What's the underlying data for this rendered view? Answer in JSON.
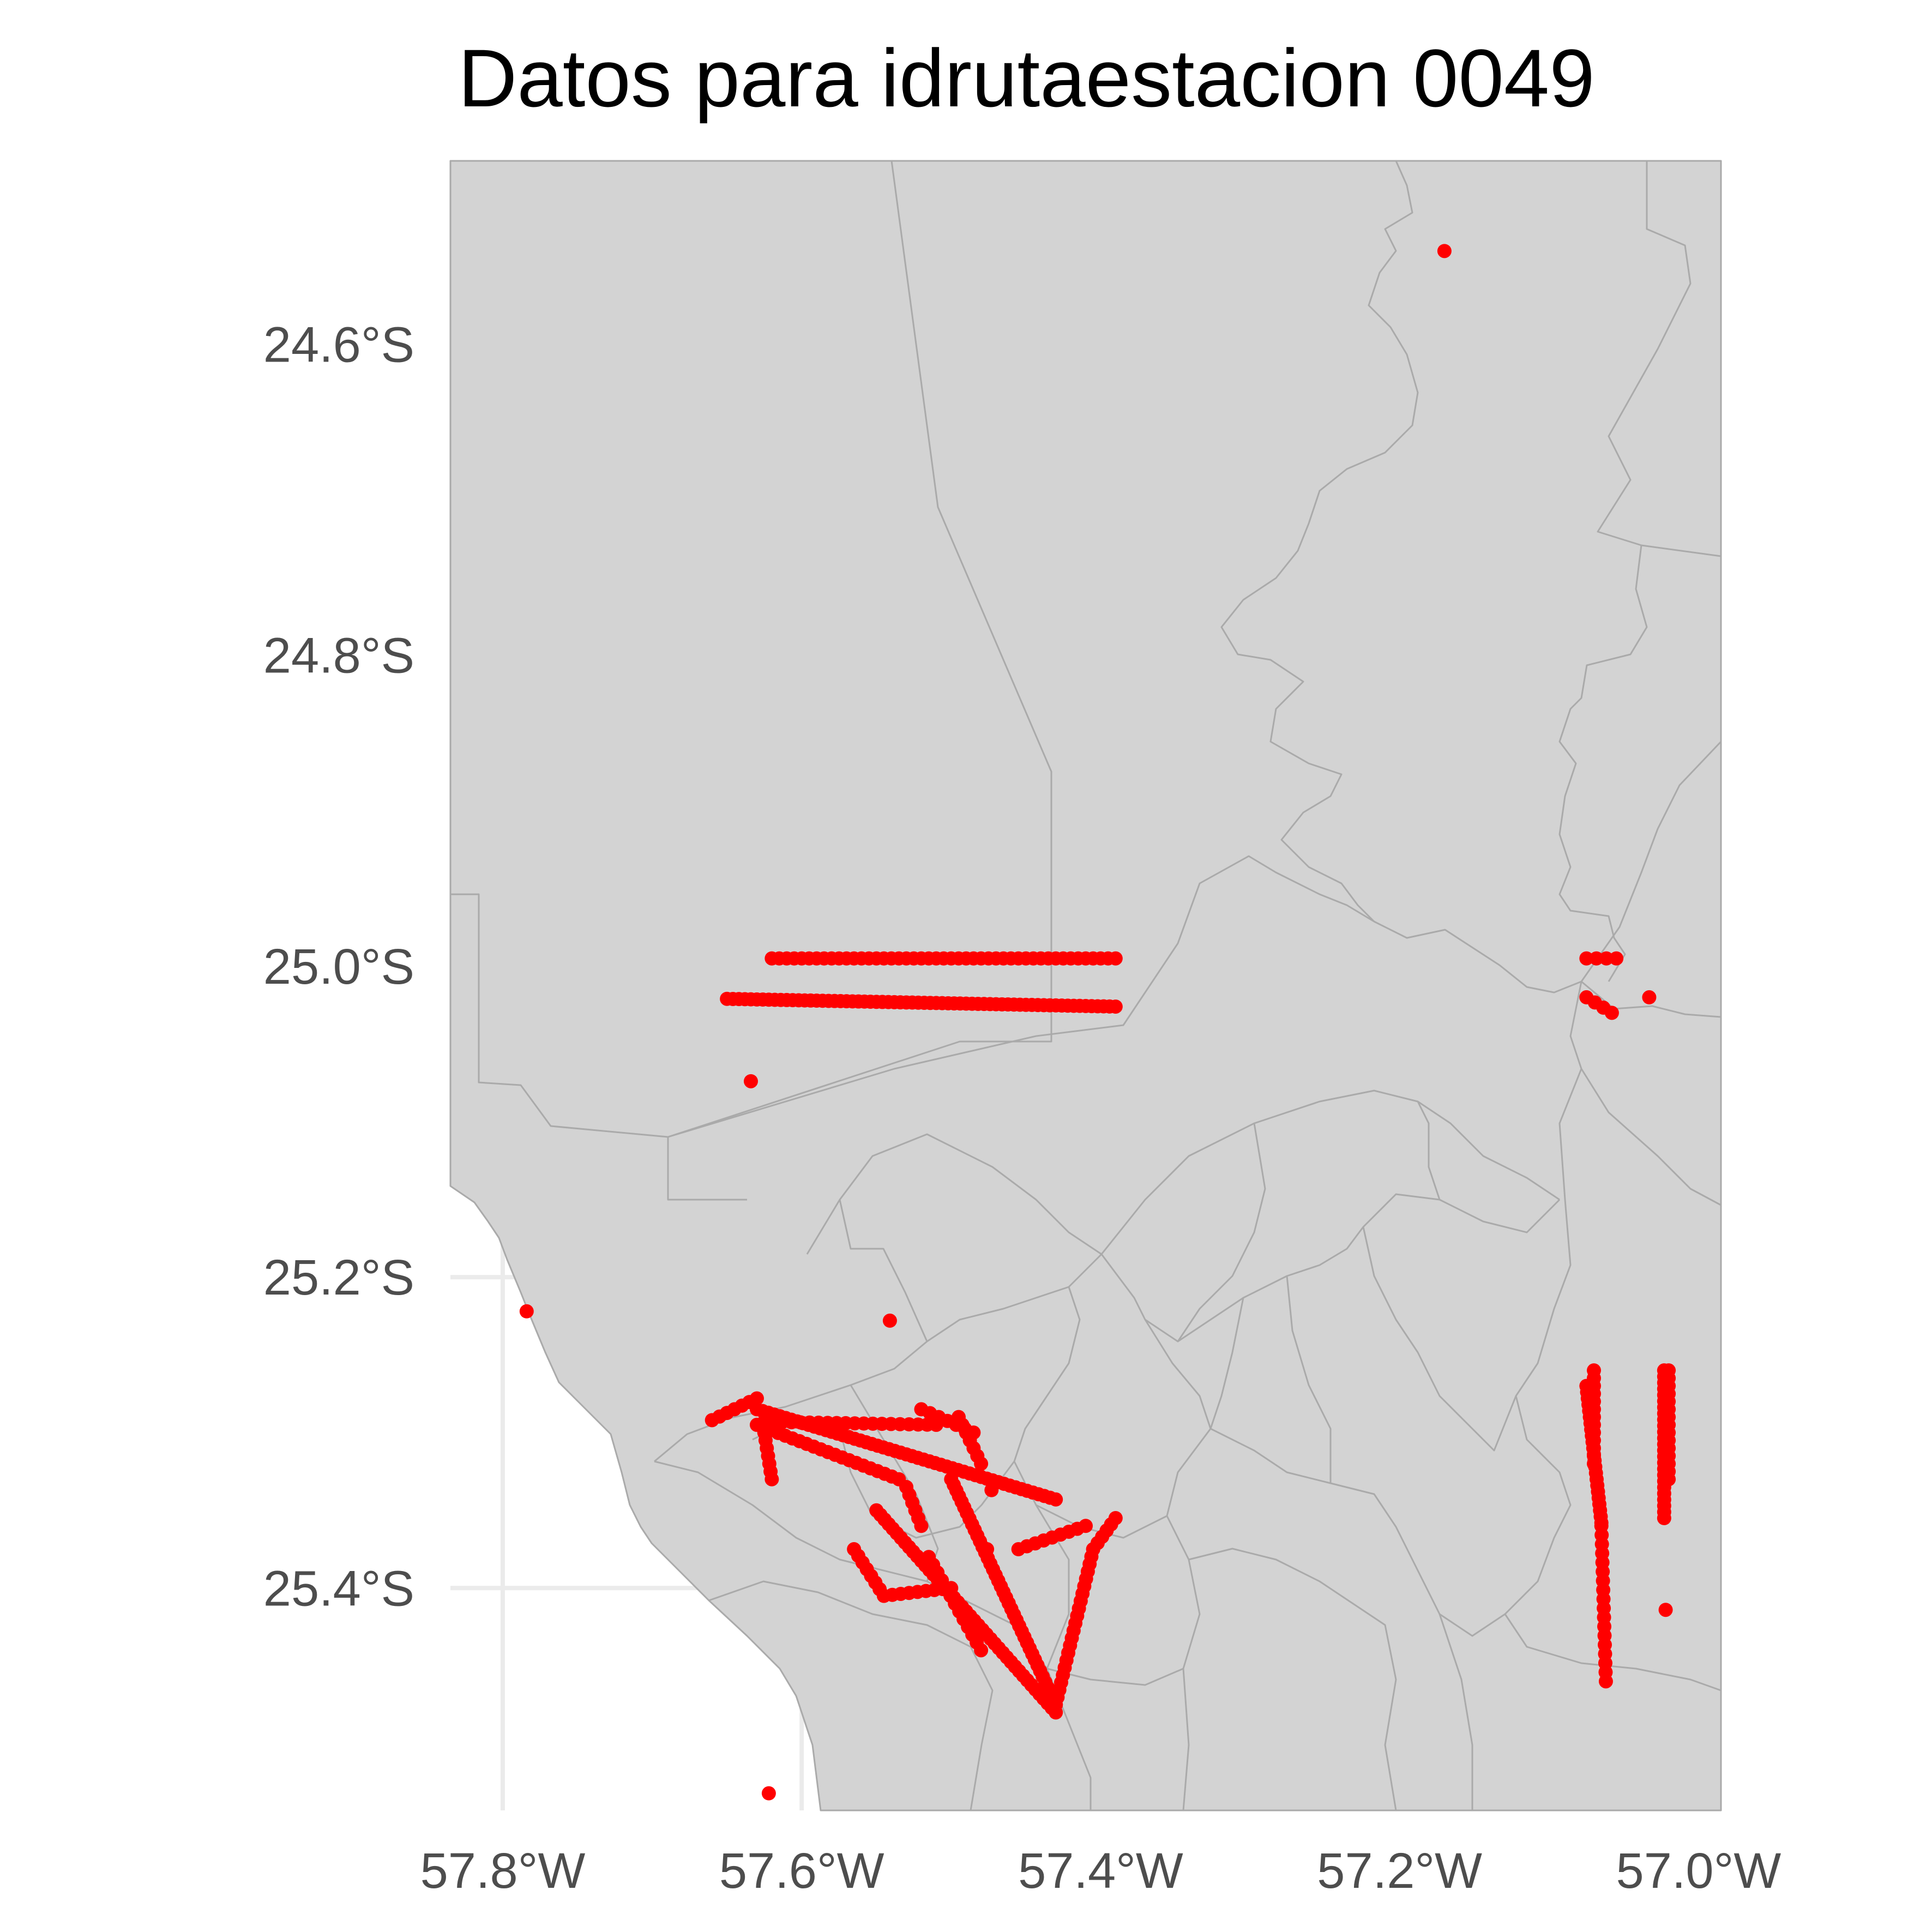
{
  "title": "Datos para idrutaestacion 0049",
  "map": {
    "projection": "longitude / latitude",
    "lon_range": [
      -57.835,
      -56.985
    ],
    "lat_range": [
      -25.543,
      -24.482
    ],
    "panel_background": "#ffffff",
    "land_fill": "#d3d3d3",
    "boundary_color": "#aaaaaa",
    "grid_color": "#ebebeb",
    "point_color": "#ff0000",
    "x_ticks": [
      {
        "value": -57.8,
        "label": "57.8°W"
      },
      {
        "value": -57.6,
        "label": "57.6°W"
      },
      {
        "value": -57.4,
        "label": "57.4°W"
      },
      {
        "value": -57.2,
        "label": "57.2°W"
      },
      {
        "value": -57.0,
        "label": "57.0°W"
      }
    ],
    "y_ticks": [
      {
        "value": -24.6,
        "label": "24.6°S"
      },
      {
        "value": -24.8,
        "label": "24.8°S"
      },
      {
        "value": -25.0,
        "label": "25.0°S"
      },
      {
        "value": -25.2,
        "label": "25.2°S"
      },
      {
        "value": -25.4,
        "label": "25.4°S"
      }
    ]
  },
  "points": {
    "isolated": [
      [
        -57.17,
        -24.54
      ],
      [
        -57.634,
        -25.074
      ],
      [
        -57.784,
        -25.222
      ],
      [
        -57.541,
        -25.228
      ],
      [
        -57.618,
        -25.289
      ],
      [
        -57.473,
        -25.337
      ],
      [
        -57.476,
        -25.375
      ],
      [
        -57.622,
        -25.532
      ],
      [
        -57.022,
        -25.414
      ],
      [
        -57.033,
        -25.02
      ]
    ],
    "tracks": [
      {
        "from": [
          -57.62,
          -24.995
        ],
        "to": [
          -57.39,
          -24.995
        ],
        "spacing": 0.005
      },
      {
        "from": [
          -57.65,
          -25.021
        ],
        "to": [
          -57.39,
          -25.026
        ],
        "spacing": 0.004
      },
      {
        "from": [
          -57.66,
          -25.292
        ],
        "to": [
          -57.63,
          -25.278
        ],
        "spacing": 0.006
      },
      {
        "from": [
          -57.625,
          -25.293
        ],
        "to": [
          -57.51,
          -25.295
        ],
        "spacing": 0.006
      },
      {
        "from": [
          -57.63,
          -25.285
        ],
        "to": [
          -57.43,
          -25.343
        ],
        "spacing": 0.004
      },
      {
        "from": [
          -57.63,
          -25.295
        ],
        "to": [
          -57.535,
          -25.33
        ],
        "spacing": 0.005
      },
      {
        "from": [
          -57.625,
          -25.3
        ],
        "to": [
          -57.62,
          -25.33
        ],
        "spacing": 0.005
      },
      {
        "from": [
          -57.55,
          -25.35
        ],
        "to": [
          -57.43,
          -25.48
        ],
        "spacing": 0.004
      },
      {
        "from": [
          -57.5,
          -25.33
        ],
        "to": [
          -57.43,
          -25.475
        ],
        "spacing": 0.004
      },
      {
        "from": [
          -57.43,
          -25.475
        ],
        "to": [
          -57.405,
          -25.375
        ],
        "spacing": 0.005
      },
      {
        "from": [
          -57.405,
          -25.375
        ],
        "to": [
          -57.39,
          -25.355
        ],
        "spacing": 0.005
      },
      {
        "from": [
          -57.565,
          -25.375
        ],
        "to": [
          -57.545,
          -25.405
        ],
        "spacing": 0.005
      },
      {
        "from": [
          -57.545,
          -25.405
        ],
        "to": [
          -57.5,
          -25.4
        ],
        "spacing": 0.006
      },
      {
        "from": [
          -57.515,
          -25.38
        ],
        "to": [
          -57.48,
          -25.44
        ],
        "spacing": 0.006
      },
      {
        "from": [
          -57.52,
          -25.285
        ],
        "to": [
          -57.485,
          -25.3
        ],
        "spacing": 0.006
      },
      {
        "from": [
          -57.495,
          -25.29
        ],
        "to": [
          -57.48,
          -25.32
        ],
        "spacing": 0.006
      },
      {
        "from": [
          -57.53,
          -25.335
        ],
        "to": [
          -57.52,
          -25.36
        ],
        "spacing": 0.005
      },
      {
        "from": [
          -57.455,
          -25.375
        ],
        "to": [
          -57.41,
          -25.36
        ],
        "spacing": 0.006
      },
      {
        "from": [
          -57.075,
          -25.27
        ],
        "to": [
          -57.065,
          -25.358
        ],
        "spacing": 0.004
      },
      {
        "from": [
          -57.07,
          -25.26
        ],
        "to": [
          -57.07,
          -25.32
        ],
        "spacing": 0.005
      },
      {
        "from": [
          -57.065,
          -25.36
        ],
        "to": [
          -57.062,
          -25.46
        ],
        "spacing": 0.006
      },
      {
        "from": [
          -57.023,
          -25.26
        ],
        "to": [
          -57.023,
          -25.355
        ],
        "spacing": 0.004
      },
      {
        "from": [
          -57.02,
          -25.26
        ],
        "to": [
          -57.02,
          -25.33
        ],
        "spacing": 0.005
      },
      {
        "from": [
          -57.075,
          -24.995
        ],
        "to": [
          -57.055,
          -24.995
        ],
        "spacing": 0.008
      },
      {
        "from": [
          -57.075,
          -25.02
        ],
        "to": [
          -57.058,
          -25.03
        ],
        "spacing": 0.006
      }
    ]
  }
}
